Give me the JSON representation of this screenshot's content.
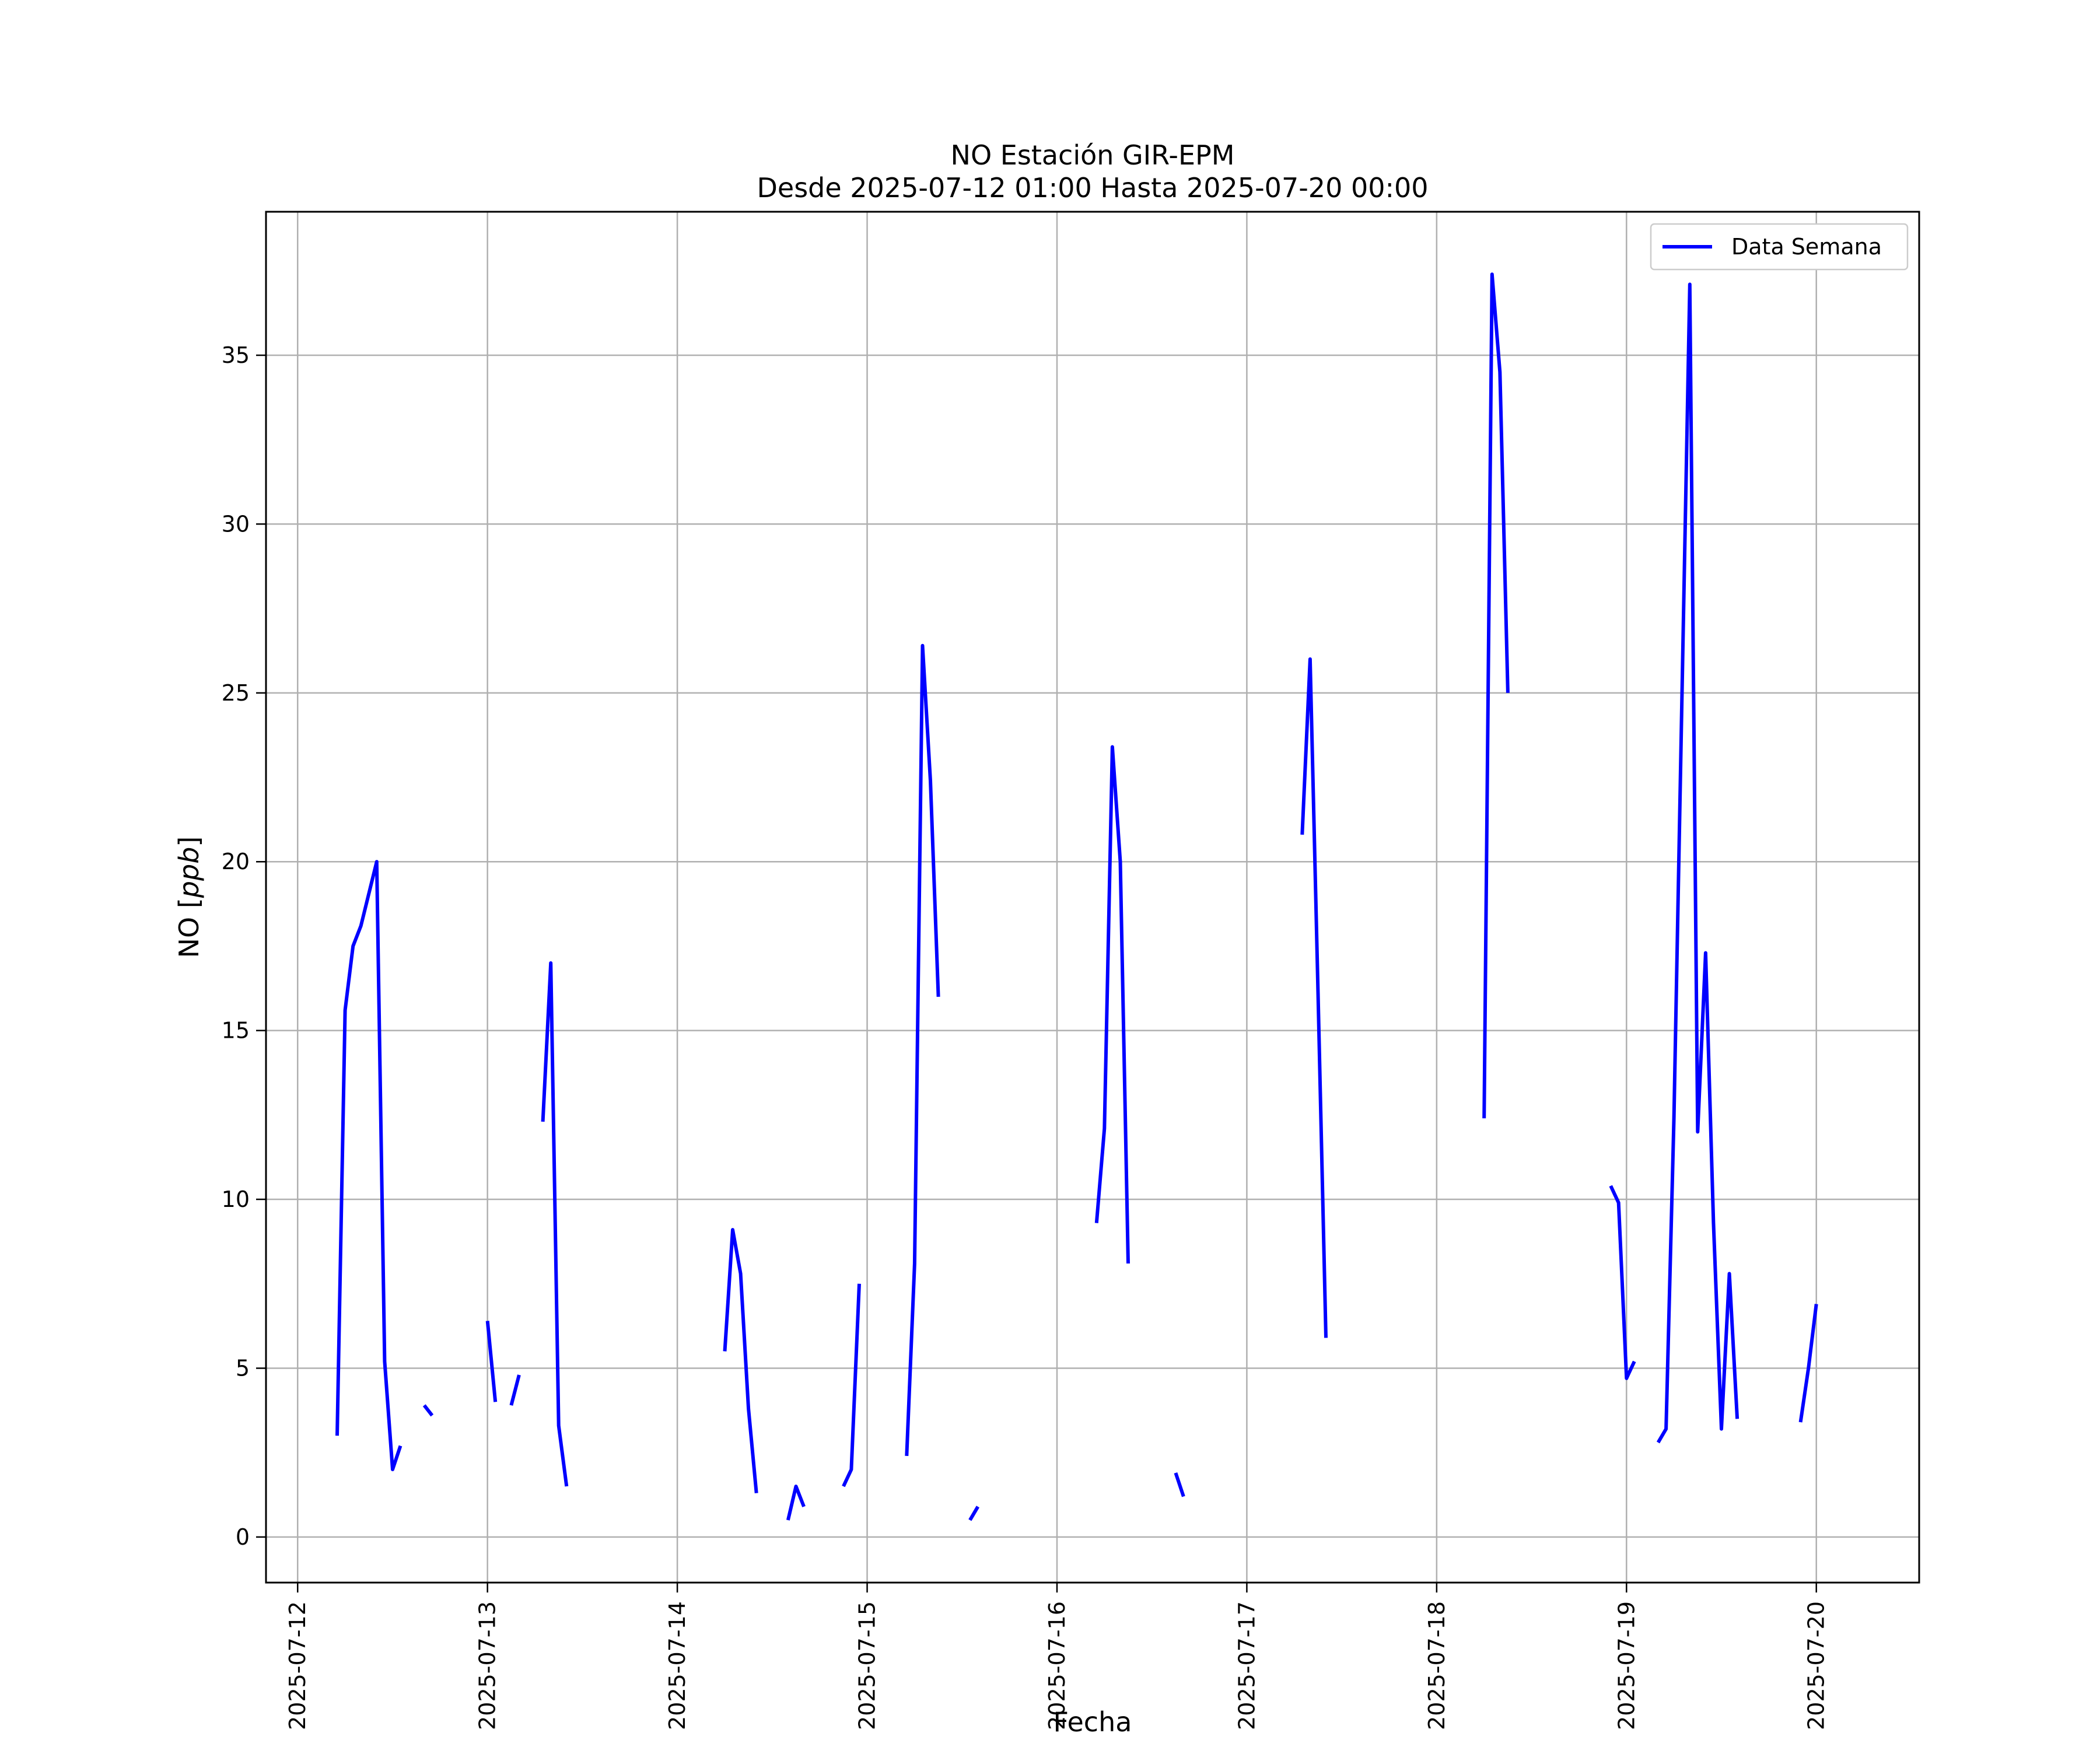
{
  "chart_data": {
    "type": "line",
    "title": "NO Estación GIR-EPM",
    "subtitle": "Desde 2025-07-12 01:00 Hasta 2025-07-20 00:00",
    "xlabel": "Fecha",
    "ylabel_prefix": "NO [",
    "ylabel_unit": "ppb",
    "ylabel_suffix": "]",
    "xlim": [
      "2025-07-11 20:00",
      "2025-07-20 13:00"
    ],
    "ylim": [
      -1.35,
      39.25
    ],
    "x_ticks": [
      "2025-07-12",
      "2025-07-13",
      "2025-07-14",
      "2025-07-15",
      "2025-07-16",
      "2025-07-17",
      "2025-07-18",
      "2025-07-19",
      "2025-07-20"
    ],
    "y_ticks": [
      0,
      5,
      10,
      15,
      20,
      25,
      30,
      35
    ],
    "y_tick_labels": [
      "0",
      "5",
      "10",
      "15",
      "20",
      "25",
      "30",
      "35"
    ],
    "grid": true,
    "legend_position": "top-right",
    "colors": {
      "series": "#0000ff",
      "grid": "#b0b0b0",
      "axes": "#000000"
    },
    "series": [
      {
        "name": "Data Semana",
        "segments": [
          [
            [
              "2025-07-12 05:00",
              3.0
            ],
            [
              "2025-07-12 06:00",
              15.6
            ],
            [
              "2025-07-12 07:00",
              17.5
            ],
            [
              "2025-07-12 08:00",
              18.1
            ],
            [
              "2025-07-12 10:00",
              20.0
            ],
            [
              "2025-07-12 11:00",
              5.2
            ],
            [
              "2025-07-12 12:00",
              2.0
            ],
            [
              "2025-07-12 13:00",
              2.7
            ]
          ],
          [
            [
              "2025-07-12 16:00",
              3.9
            ],
            [
              "2025-07-12 17:00",
              3.6
            ]
          ],
          [
            [
              "2025-07-13 00:00",
              6.4
            ],
            [
              "2025-07-13 01:00",
              4.0
            ]
          ],
          [
            [
              "2025-07-13 03:00",
              3.9
            ],
            [
              "2025-07-13 04:00",
              4.8
            ]
          ],
          [
            [
              "2025-07-13 07:00",
              12.3
            ],
            [
              "2025-07-13 08:00",
              17.0
            ],
            [
              "2025-07-13 09:00",
              3.3
            ],
            [
              "2025-07-13 10:00",
              1.5
            ]
          ],
          [
            [
              "2025-07-14 06:00",
              5.5
            ],
            [
              "2025-07-14 07:00",
              9.1
            ],
            [
              "2025-07-14 08:00",
              7.8
            ],
            [
              "2025-07-14 09:00",
              3.8
            ],
            [
              "2025-07-14 10:00",
              1.3
            ]
          ],
          [
            [
              "2025-07-14 14:00",
              0.5
            ],
            [
              "2025-07-14 15:00",
              1.5
            ],
            [
              "2025-07-14 16:00",
              0.9
            ]
          ],
          [
            [
              "2025-07-14 21:00",
              1.5
            ],
            [
              "2025-07-14 22:00",
              2.0
            ],
            [
              "2025-07-14 23:00",
              7.5
            ]
          ],
          [
            [
              "2025-07-15 05:00",
              2.4
            ],
            [
              "2025-07-15 06:00",
              8.1
            ],
            [
              "2025-07-15 07:00",
              26.4
            ],
            [
              "2025-07-15 08:00",
              22.4
            ],
            [
              "2025-07-15 09:00",
              16.0
            ]
          ],
          [
            [
              "2025-07-15 13:00",
              0.5
            ],
            [
              "2025-07-15 14:00",
              0.9
            ]
          ],
          [
            [
              "2025-07-16 05:00",
              9.3
            ],
            [
              "2025-07-16 06:00",
              12.1
            ],
            [
              "2025-07-16 07:00",
              23.4
            ],
            [
              "2025-07-16 08:00",
              20.0
            ],
            [
              "2025-07-16 09:00",
              8.1
            ]
          ],
          [
            [
              "2025-07-16 15:00",
              1.9
            ],
            [
              "2025-07-16 16:00",
              1.2
            ]
          ],
          [
            [
              "2025-07-17 07:00",
              20.8
            ],
            [
              "2025-07-17 08:00",
              26.0
            ],
            [
              "2025-07-17 09:00",
              16.1
            ],
            [
              "2025-07-17 10:00",
              5.9
            ]
          ],
          [
            [
              "2025-07-18 06:00",
              12.4
            ],
            [
              "2025-07-18 07:00",
              37.4
            ],
            [
              "2025-07-18 08:00",
              34.5
            ],
            [
              "2025-07-18 09:00",
              25.0
            ]
          ],
          [
            [
              "2025-07-18 22:00",
              10.4
            ],
            [
              "2025-07-18 23:00",
              9.9
            ],
            [
              "2025-07-19 00:00",
              4.7
            ],
            [
              "2025-07-19 01:00",
              5.2
            ]
          ],
          [
            [
              "2025-07-19 04:00",
              2.8
            ],
            [
              "2025-07-19 05:00",
              3.2
            ],
            [
              "2025-07-19 06:00",
              12.4
            ],
            [
              "2025-07-19 08:00",
              37.1
            ],
            [
              "2025-07-19 09:00",
              12.0
            ],
            [
              "2025-07-19 10:00",
              17.3
            ],
            [
              "2025-07-19 11:00",
              9.3
            ],
            [
              "2025-07-19 12:00",
              3.2
            ],
            [
              "2025-07-19 13:00",
              7.8
            ],
            [
              "2025-07-19 14:00",
              3.5
            ]
          ],
          [
            [
              "2025-07-19 22:00",
              3.4
            ],
            [
              "2025-07-19 23:00",
              5.0
            ],
            [
              "2025-07-20 00:00",
              6.9
            ]
          ]
        ]
      }
    ]
  }
}
